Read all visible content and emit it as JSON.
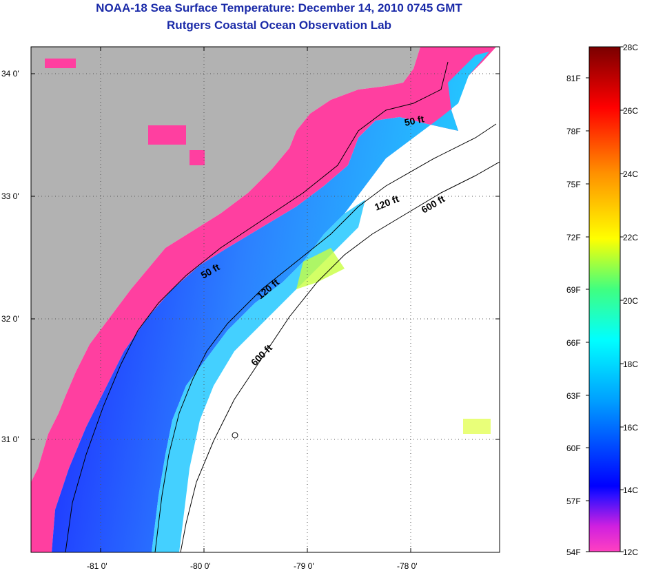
{
  "header": {
    "title": "NOAA-18 Sea Surface Temperature:  December 14, 2010 0745 GMT",
    "subtitle": "Rutgers Coastal Ocean Observation Lab"
  },
  "map": {
    "region": "Southeast US coast (South Carolina / Georgia)",
    "lat_labels": [
      "34 0'",
      "33 0'",
      "32 0'",
      "31 0'"
    ],
    "lon_labels": [
      "-81 0'",
      "-80 0'",
      "-79 0'",
      "-78 0'"
    ],
    "contours": [
      {
        "label": "50 ft"
      },
      {
        "label": "120 ft"
      },
      {
        "label": "600 ft"
      },
      {
        "label": "50 ft"
      },
      {
        "label": "120 ft"
      },
      {
        "label": "600 ft"
      }
    ],
    "colors": {
      "land": "#b2b2b2",
      "nearshore": "#ff3fa0",
      "cold_band": "#1a1aff",
      "mid_band": "#23b8ff",
      "warm_band": "#c8ff40",
      "clouds": "#ffffff"
    }
  },
  "colorbar": {
    "fahrenheit_labels": [
      "81F",
      "78F",
      "75F",
      "72F",
      "69F",
      "66F",
      "63F",
      "60F",
      "57F",
      "54F"
    ],
    "celsius_labels": [
      "28C",
      "26C",
      "24C",
      "22C",
      "20C",
      "18C",
      "16C",
      "14C",
      "12C"
    ],
    "range_c": [
      12,
      28
    ],
    "stops": [
      "#ff40c0",
      "#a000e0",
      "#0000ff",
      "#00a0ff",
      "#00ffff",
      "#40ff80",
      "#ffff00",
      "#ff9000",
      "#ff0000",
      "#7a0000"
    ]
  }
}
